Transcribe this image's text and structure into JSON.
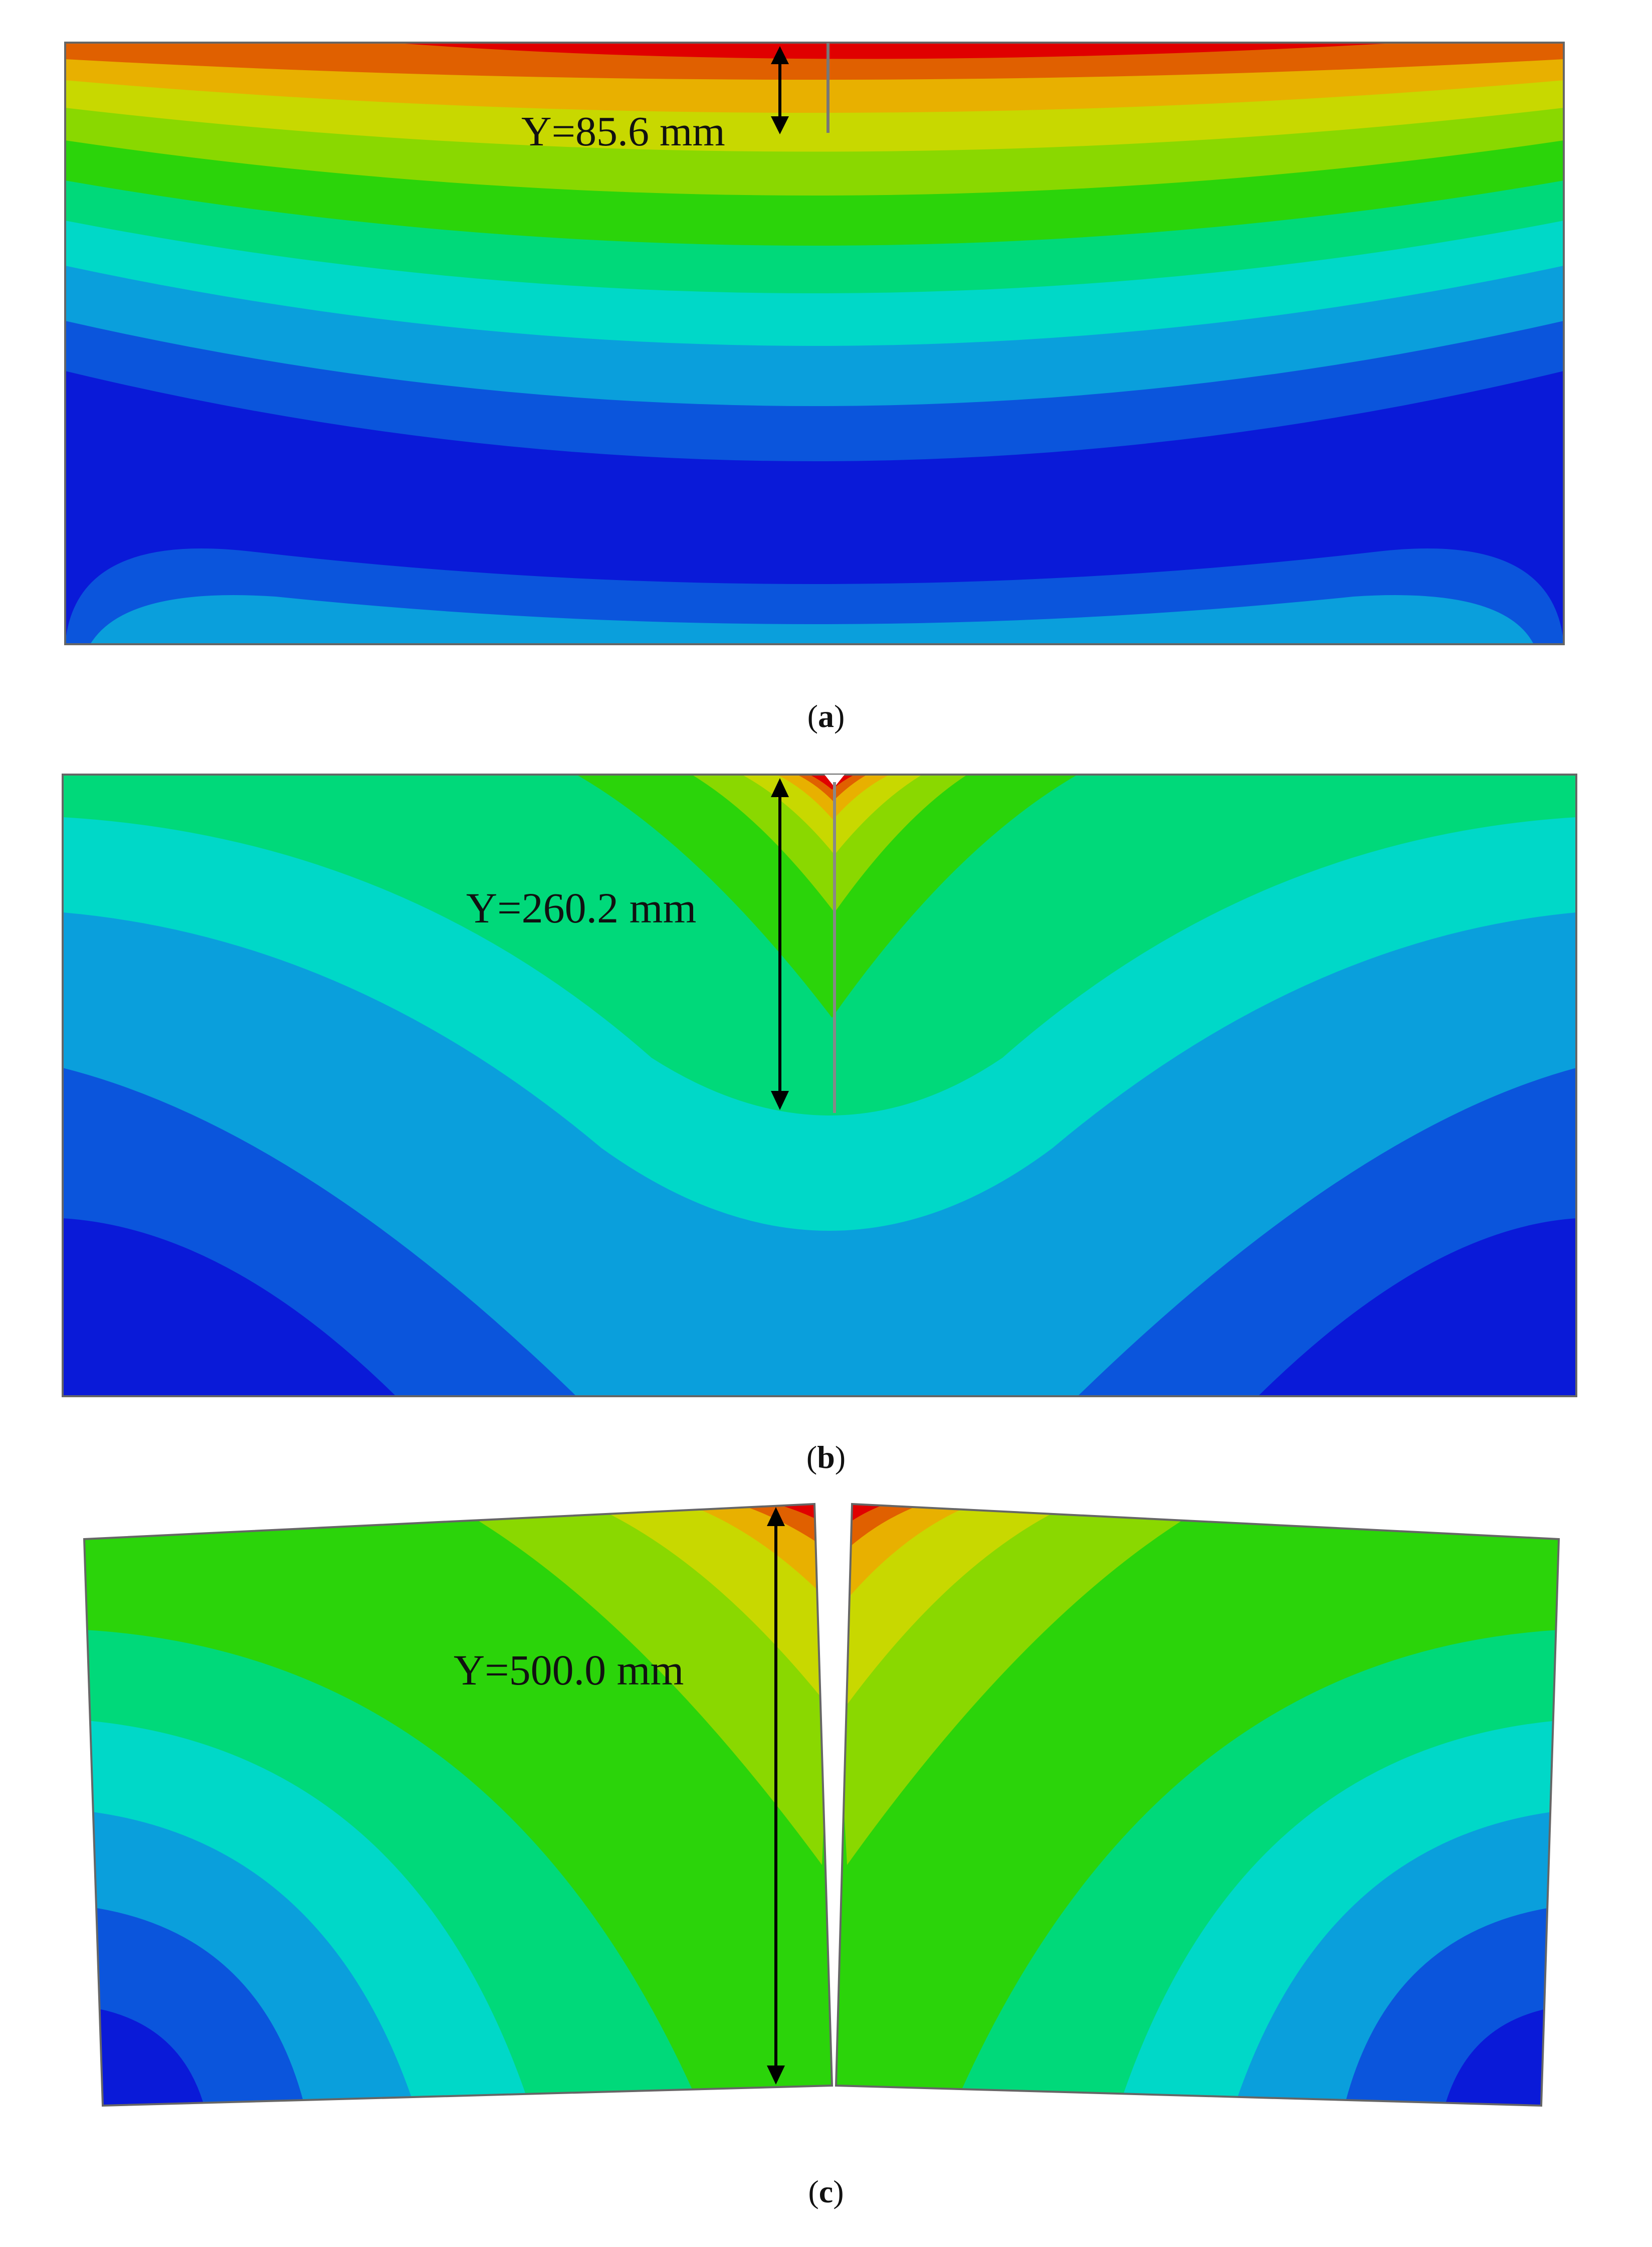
{
  "figure": {
    "palette": [
      "#0a1ad8",
      "#0b55dc",
      "#0a9fdc",
      "#00d8c8",
      "#00d97a",
      "#2bd40a",
      "#8ad800",
      "#c8d800",
      "#e8b000",
      "#e06000",
      "#e00000"
    ],
    "panels": [
      {
        "id": "a",
        "annotation": "Y=85.6 mm",
        "caption_open": "(",
        "caption_letter": "a",
        "caption_close": ")"
      },
      {
        "id": "b",
        "annotation": "Y=260.2 mm",
        "caption_open": "(",
        "caption_letter": "b",
        "caption_close": ")"
      },
      {
        "id": "c",
        "annotation": "Y=500.0 mm",
        "caption_open": "(",
        "caption_letter": "c",
        "caption_close": ")"
      }
    ]
  }
}
